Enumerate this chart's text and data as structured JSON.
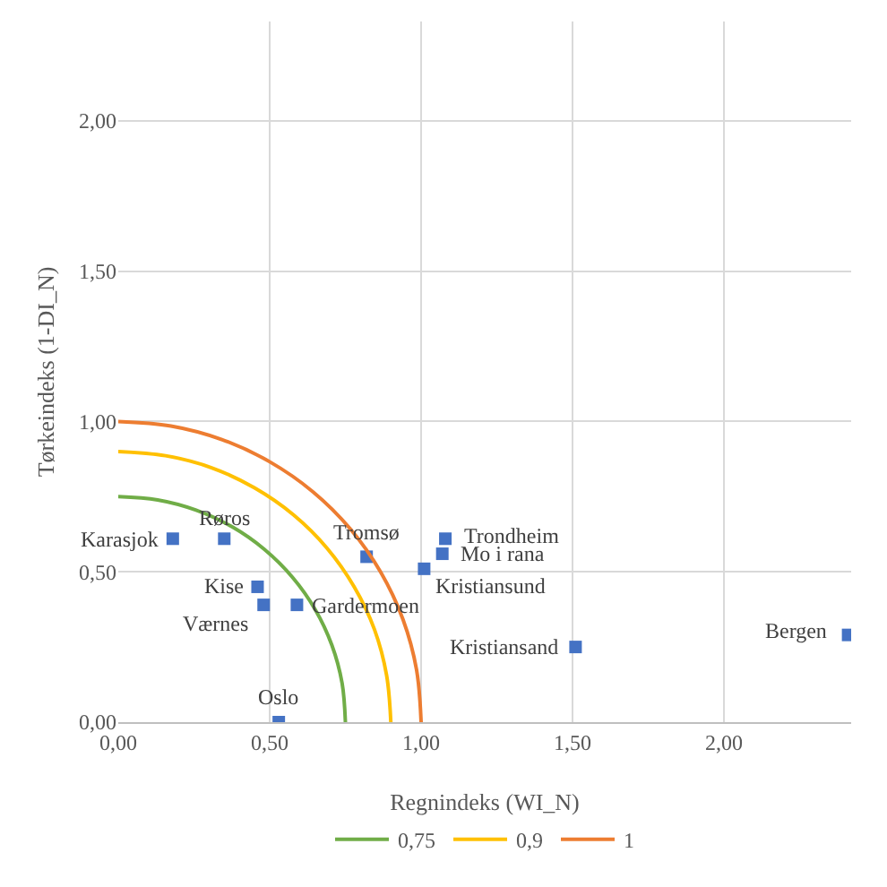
{
  "chart_data": {
    "type": "scatter",
    "xlabel": "Regnindeks (WI_N)",
    "ylabel": "Tørkeindeks (1-DI_N)",
    "xlim": [
      0,
      2.42
    ],
    "ylim": [
      0,
      2.33
    ],
    "xticks": [
      {
        "value": 0,
        "label": "0,00"
      },
      {
        "value": 0.5,
        "label": "0,50"
      },
      {
        "value": 1,
        "label": "1,00"
      },
      {
        "value": 1.5,
        "label": "1,50"
      },
      {
        "value": 2,
        "label": "2,00"
      }
    ],
    "yticks": [
      {
        "value": 0,
        "label": "0,00"
      },
      {
        "value": 0.5,
        "label": "0,50"
      },
      {
        "value": 1,
        "label": "1,00"
      },
      {
        "value": 1.5,
        "label": "1,50"
      },
      {
        "value": 2,
        "label": "2,00"
      }
    ],
    "grid": true,
    "legend": "bottom",
    "series": [
      {
        "marker": "square",
        "color": "#4472c4",
        "x": [
          0.18,
          0.35,
          0.46,
          0.48,
          0.59,
          0.53,
          0.82,
          1.08,
          1.07,
          1.01,
          1.51,
          2.41
        ],
        "values": [
          0.61,
          0.61,
          0.45,
          0.39,
          0.39,
          0.0,
          0.55,
          0.61,
          0.56,
          0.51,
          0.25,
          0.29
        ]
      },
      {
        "type": "line",
        "name": "0,75",
        "color": "#70ad47",
        "x": [
          0.75,
          0.739,
          0.705,
          0.65,
          0.575,
          0.482,
          0.375,
          0.257,
          0.13,
          0
        ],
        "values": [
          0,
          0.13,
          0.257,
          0.375,
          0.482,
          0.575,
          0.65,
          0.705,
          0.739,
          0.75
        ]
      },
      {
        "type": "line",
        "name": "0,9",
        "color": "#ffc000",
        "x": [
          0.9,
          0.886,
          0.846,
          0.779,
          0.689,
          0.579,
          0.45,
          0.308,
          0.156,
          0
        ],
        "values": [
          0,
          0.156,
          0.308,
          0.45,
          0.579,
          0.689,
          0.779,
          0.846,
          0.886,
          0.9
        ]
      },
      {
        "type": "line",
        "name": "1",
        "color": "#ed7d31",
        "x": [
          1,
          0.985,
          0.94,
          0.866,
          0.766,
          0.643,
          0.5,
          0.342,
          0.174,
          0
        ],
        "values": [
          0,
          0.174,
          0.342,
          0.5,
          0.643,
          0.766,
          0.866,
          0.94,
          0.985,
          1
        ]
      }
    ],
    "annotations": [
      {
        "text": "Karasjok",
        "x": 0.18,
        "y": 0.61
      },
      {
        "text": "Røros",
        "x": 0.35,
        "y": 0.61
      },
      {
        "text": "Kise",
        "x": 0.46,
        "y": 0.45
      },
      {
        "text": "Værnes",
        "x": 0.48,
        "y": 0.39
      },
      {
        "text": "Gardermoen",
        "x": 0.59,
        "y": 0.39
      },
      {
        "text": "Oslo",
        "x": 0.53,
        "y": 0.0
      },
      {
        "text": "Tromsø",
        "x": 0.82,
        "y": 0.55
      },
      {
        "text": "Trondheim",
        "x": 1.08,
        "y": 0.61
      },
      {
        "text": "Mo i rana",
        "x": 1.07,
        "y": 0.56
      },
      {
        "text": "Kristiansund",
        "x": 1.01,
        "y": 0.51
      },
      {
        "text": "Kristiansand",
        "x": 1.51,
        "y": 0.25
      },
      {
        "text": "Bergen",
        "x": 2.41,
        "y": 0.29
      }
    ]
  }
}
